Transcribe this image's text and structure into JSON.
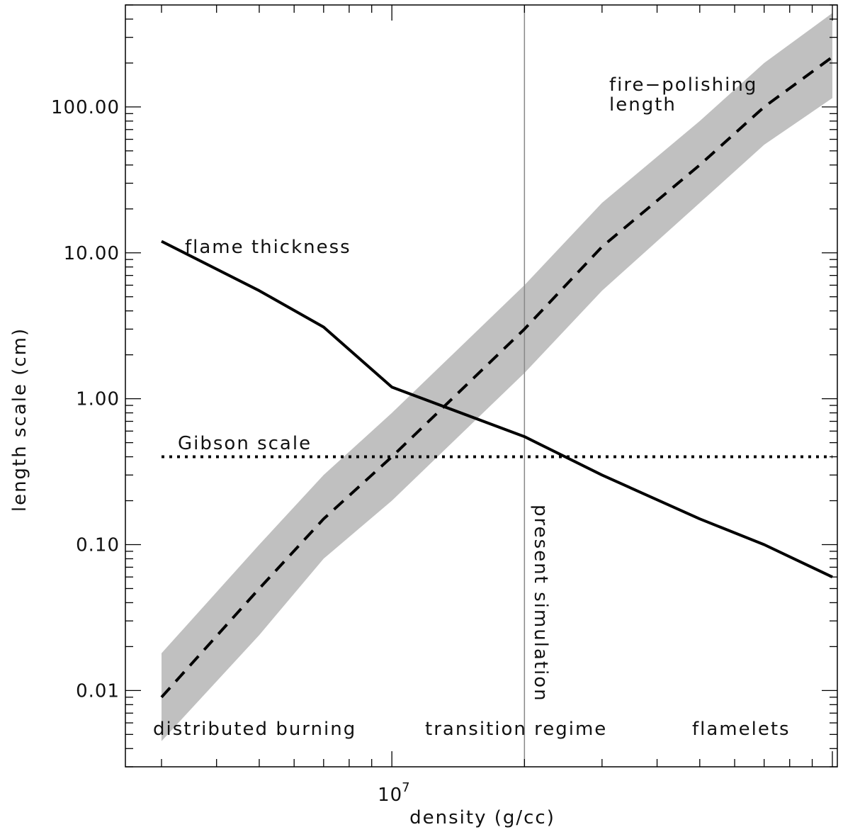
{
  "chart_data": {
    "type": "line",
    "title": "",
    "xlabel": "density (g/cc)",
    "ylabel": "length scale (cm)",
    "x_scale": "log",
    "y_scale": "log",
    "xlim": [
      3000000.0,
      100000000.0
    ],
    "ylim": [
      0.003,
      500
    ],
    "x_tick_labels": [
      {
        "value": 10000000.0,
        "mantissa": "10",
        "exponent": "7"
      }
    ],
    "y_tick_labels": [
      {
        "value": 0.01,
        "label": "0.01"
      },
      {
        "value": 0.1,
        "label": "0.10"
      },
      {
        "value": 1,
        "label": "1.00"
      },
      {
        "value": 10,
        "label": "10.00"
      },
      {
        "value": 100,
        "label": "100.00"
      }
    ],
    "grid": false,
    "legend": "none",
    "series": [
      {
        "style": "solid",
        "x": [
          3000000.0,
          5000000.0,
          7000000.0,
          10000000.0,
          20000000.0,
          30000000.0,
          50000000.0,
          70000000.0,
          100000000.0
        ],
        "y": [
          12,
          5.5,
          3.1,
          1.2,
          0.55,
          0.3,
          0.15,
          0.1,
          0.06
        ]
      },
      {
        "style": "dashed",
        "x": [
          3000000.0,
          5000000.0,
          7000000.0,
          10000000.0,
          20000000.0,
          30000000.0,
          50000000.0,
          70000000.0,
          100000000.0
        ],
        "y": [
          0.009,
          0.05,
          0.15,
          0.4,
          3,
          11,
          40,
          100,
          220
        ]
      },
      {
        "style": "dotted",
        "x": [
          3000000.0,
          100000000.0
        ],
        "y": [
          0.4,
          0.4
        ]
      }
    ],
    "band": {
      "x": [
        3000000.0,
        5000000.0,
        7000000.0,
        10000000.0,
        20000000.0,
        30000000.0,
        50000000.0,
        70000000.0,
        100000000.0
      ],
      "lower": [
        0.0045,
        0.024,
        0.08,
        0.2,
        1.5,
        5.5,
        22,
        55,
        115
      ],
      "upper": [
        0.018,
        0.1,
        0.3,
        0.8,
        6,
        22,
        80,
        200,
        440
      ],
      "color": "#c0c0c0"
    },
    "vline": {
      "x": 20000000.0,
      "color": "#888888"
    },
    "annotations": {
      "flame_thickness": "flame thickness",
      "gibson_scale": "Gibson scale",
      "fire_polishing_1": "fire−polishing",
      "fire_polishing_2": "length",
      "present_simulation": "present simulation",
      "distributed_burning": "distributed burning",
      "transition_regime": "transition regime",
      "flamelets": "flamelets"
    }
  }
}
